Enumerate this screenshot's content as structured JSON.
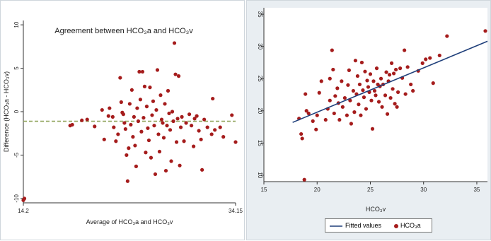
{
  "colors": {
    "point": "#a51c1c",
    "fit_line": "#1f3f7a",
    "mean_line": "#8fa35a",
    "right_bg": "#e9eef2",
    "plot_bg": "#ffffff"
  },
  "chart_data": [
    {
      "type": "scatter",
      "title": "Agreement between HCO₃a and HCO₃v",
      "xlabel": "Average of HCO₃a and HCO₃v",
      "ylabel": "Difference (HCO₃a - HCO₃v)",
      "xlim": [
        14.2,
        34.15
      ],
      "ylim": [
        -10.5,
        10.5
      ],
      "x_ticks": [
        "14.2",
        "34.15"
      ],
      "y_ticks": [
        {
          "value": 10,
          "label": "10"
        },
        {
          "value": 5,
          "label": "5"
        },
        {
          "value": 0,
          "label": "0"
        },
        {
          "value": -5,
          "label": "-5"
        },
        {
          "value": -10,
          "label": "-10"
        }
      ],
      "mean_difference": -1.1,
      "grid": false,
      "points": [
        [
          14.2,
          -10.2
        ],
        [
          14.3,
          -10.0
        ],
        [
          18.6,
          -1.6
        ],
        [
          18.8,
          -1.5
        ],
        [
          19.7,
          -1.0
        ],
        [
          20.2,
          -0.9
        ],
        [
          20.9,
          -1.7
        ],
        [
          21.8,
          -3.2
        ],
        [
          21.6,
          0.2
        ],
        [
          22.2,
          -0.5
        ],
        [
          22.3,
          0.4
        ],
        [
          22.6,
          -0.6
        ],
        [
          22.7,
          -1.8
        ],
        [
          22.9,
          -3.4
        ],
        [
          23.1,
          -2.6
        ],
        [
          23.3,
          3.9
        ],
        [
          23.4,
          1.1
        ],
        [
          23.5,
          -0.1
        ],
        [
          23.6,
          -0.3
        ],
        [
          23.7,
          -1.3
        ],
        [
          23.8,
          -2.0
        ],
        [
          23.9,
          -5.0
        ],
        [
          24.0,
          -8.0
        ],
        [
          24.1,
          -4.2
        ],
        [
          24.2,
          0.9
        ],
        [
          24.3,
          -1.5
        ],
        [
          24.4,
          2.5
        ],
        [
          24.5,
          -2.9
        ],
        [
          24.6,
          -0.6
        ],
        [
          24.7,
          -3.9
        ],
        [
          24.8,
          -6.3
        ],
        [
          24.9,
          0.4
        ],
        [
          25.0,
          -1.1
        ],
        [
          25.1,
          4.6
        ],
        [
          25.2,
          1.4
        ],
        [
          25.3,
          -2.3
        ],
        [
          25.4,
          4.6
        ],
        [
          25.5,
          -0.7
        ],
        [
          25.6,
          2.9
        ],
        [
          25.7,
          -4.7
        ],
        [
          25.8,
          0.6
        ],
        [
          25.9,
          -1.9
        ],
        [
          26.0,
          -3.3
        ],
        [
          26.1,
          2.8
        ],
        [
          26.2,
          -5.3
        ],
        [
          26.3,
          -0.4
        ],
        [
          26.4,
          1.2
        ],
        [
          26.5,
          -1.6
        ],
        [
          26.6,
          -7.2
        ],
        [
          26.7,
          0.2
        ],
        [
          26.8,
          4.8
        ],
        [
          26.9,
          -2.6
        ],
        [
          27.0,
          -4.6
        ],
        [
          27.1,
          1.9
        ],
        [
          27.2,
          -0.9
        ],
        [
          27.3,
          -1.3
        ],
        [
          27.4,
          -3.0
        ],
        [
          27.5,
          0.9
        ],
        [
          27.6,
          -6.8
        ],
        [
          27.7,
          -1.6
        ],
        [
          27.8,
          2.4
        ],
        [
          27.9,
          -0.2
        ],
        [
          28.0,
          -2.1
        ],
        [
          28.1,
          -5.7
        ],
        [
          28.2,
          0.0
        ],
        [
          28.3,
          -1.1
        ],
        [
          28.4,
          7.9
        ],
        [
          28.5,
          4.3
        ],
        [
          28.6,
          -3.5
        ],
        [
          28.7,
          -0.8
        ],
        [
          28.8,
          4.1
        ],
        [
          28.9,
          -6.2
        ],
        [
          29.0,
          -1.8
        ],
        [
          29.1,
          -0.6
        ],
        [
          29.3,
          -3.4
        ],
        [
          29.5,
          -1.3
        ],
        [
          29.8,
          -0.3
        ],
        [
          30.0,
          -1.6
        ],
        [
          30.2,
          -4.0
        ],
        [
          30.3,
          -0.8
        ],
        [
          30.5,
          -0.5
        ],
        [
          30.7,
          -2.2
        ],
        [
          30.9,
          -3.2
        ],
        [
          31.0,
          -6.7
        ],
        [
          31.2,
          -0.9
        ],
        [
          31.5,
          -1.8
        ],
        [
          31.9,
          -2.6
        ],
        [
          32.0,
          1.5
        ],
        [
          32.2,
          -2.1
        ],
        [
          32.7,
          -1.8
        ],
        [
          33.0,
          -2.9
        ],
        [
          33.8,
          -0.4
        ],
        [
          34.15,
          -3.5
        ]
      ]
    },
    {
      "type": "scatter",
      "xlabel": "HCO₃v",
      "ylabel": "",
      "xlim": [
        15,
        36
      ],
      "ylim": [
        9,
        36
      ],
      "x_ticks": [
        "15",
        "20",
        "25",
        "30",
        "35"
      ],
      "y_ticks": [
        {
          "value": 35,
          "label": "35"
        },
        {
          "value": 30,
          "label": "30"
        },
        {
          "value": 25,
          "label": "25"
        },
        {
          "value": 20,
          "label": "20"
        },
        {
          "value": 15,
          "label": "15"
        },
        {
          "value": 10,
          "label": "10"
        }
      ],
      "grid": false,
      "legend": {
        "position": "bottom",
        "items": [
          "Fitted values",
          "HCO₃a"
        ]
      },
      "fit_line": {
        "x": [
          17.7,
          36.0
        ],
        "y": [
          18.2,
          30.8
        ]
      },
      "series": [
        {
          "name": "HCO₃a",
          "points": [
            [
              18.8,
              9.3
            ],
            [
              18.6,
              15.7
            ],
            [
              18.3,
              18.8
            ],
            [
              18.5,
              16.4
            ],
            [
              19.0,
              20.0
            ],
            [
              19.2,
              19.6
            ],
            [
              18.9,
              22.6
            ],
            [
              19.6,
              18.4
            ],
            [
              19.9,
              17.1
            ],
            [
              20.0,
              19.3
            ],
            [
              20.2,
              22.8
            ],
            [
              20.4,
              24.6
            ],
            [
              20.8,
              18.6
            ],
            [
              21.0,
              20.3
            ],
            [
              21.2,
              21.6
            ],
            [
              21.2,
              25.0
            ],
            [
              21.4,
              29.4
            ],
            [
              21.5,
              26.4
            ],
            [
              21.6,
              19.6
            ],
            [
              21.7,
              22.3
            ],
            [
              21.9,
              23.5
            ],
            [
              22.0,
              21.2
            ],
            [
              22.1,
              18.6
            ],
            [
              22.3,
              24.6
            ],
            [
              22.4,
              20.6
            ],
            [
              22.6,
              22.0
            ],
            [
              22.8,
              19.3
            ],
            [
              22.9,
              24.0
            ],
            [
              23.0,
              26.3
            ],
            [
              23.1,
              21.6
            ],
            [
              23.2,
              18.0
            ],
            [
              23.4,
              23.1
            ],
            [
              23.5,
              19.8
            ],
            [
              23.6,
              27.8
            ],
            [
              23.7,
              22.6
            ],
            [
              23.8,
              25.4
            ],
            [
              23.9,
              21.0
            ],
            [
              24.0,
              24.1
            ],
            [
              24.1,
              19.3
            ],
            [
              24.2,
              27.5
            ],
            [
              24.3,
              23.2
            ],
            [
              24.4,
              22.1
            ],
            [
              24.5,
              26.1
            ],
            [
              24.6,
              20.3
            ],
            [
              24.7,
              24.7
            ],
            [
              24.8,
              23.7
            ],
            [
              24.9,
              22.9
            ],
            [
              25.0,
              25.7
            ],
            [
              25.1,
              21.6
            ],
            [
              25.2,
              17.2
            ],
            [
              25.3,
              24.6
            ],
            [
              25.4,
              23.1
            ],
            [
              25.5,
              22.4
            ],
            [
              25.6,
              26.6
            ],
            [
              25.7,
              24.1
            ],
            [
              25.8,
              21.4
            ],
            [
              25.9,
              23.8
            ],
            [
              26.0,
              25.0
            ],
            [
              26.1,
              20.6
            ],
            [
              26.2,
              24.1
            ],
            [
              26.4,
              22.4
            ],
            [
              26.5,
              26.0
            ],
            [
              26.6,
              19.5
            ],
            [
              26.7,
              24.6
            ],
            [
              26.8,
              25.6
            ],
            [
              26.9,
              22.0
            ],
            [
              27.0,
              27.4
            ],
            [
              27.1,
              23.4
            ],
            [
              27.2,
              25.8
            ],
            [
              27.3,
              21.1
            ],
            [
              27.4,
              26.4
            ],
            [
              27.5,
              20.6
            ],
            [
              27.6,
              22.9
            ],
            [
              27.8,
              26.6
            ],
            [
              28.0,
              25.1
            ],
            [
              28.2,
              29.4
            ],
            [
              28.3,
              22.6
            ],
            [
              28.5,
              26.8
            ],
            [
              28.8,
              24.1
            ],
            [
              29.0,
              23.1
            ],
            [
              29.5,
              26.2
            ],
            [
              29.9,
              27.4
            ],
            [
              30.2,
              28.0
            ],
            [
              30.6,
              28.2
            ],
            [
              30.9,
              24.3
            ],
            [
              31.5,
              28.6
            ],
            [
              32.2,
              31.6
            ],
            [
              35.8,
              32.4
            ]
          ]
        }
      ]
    }
  ]
}
